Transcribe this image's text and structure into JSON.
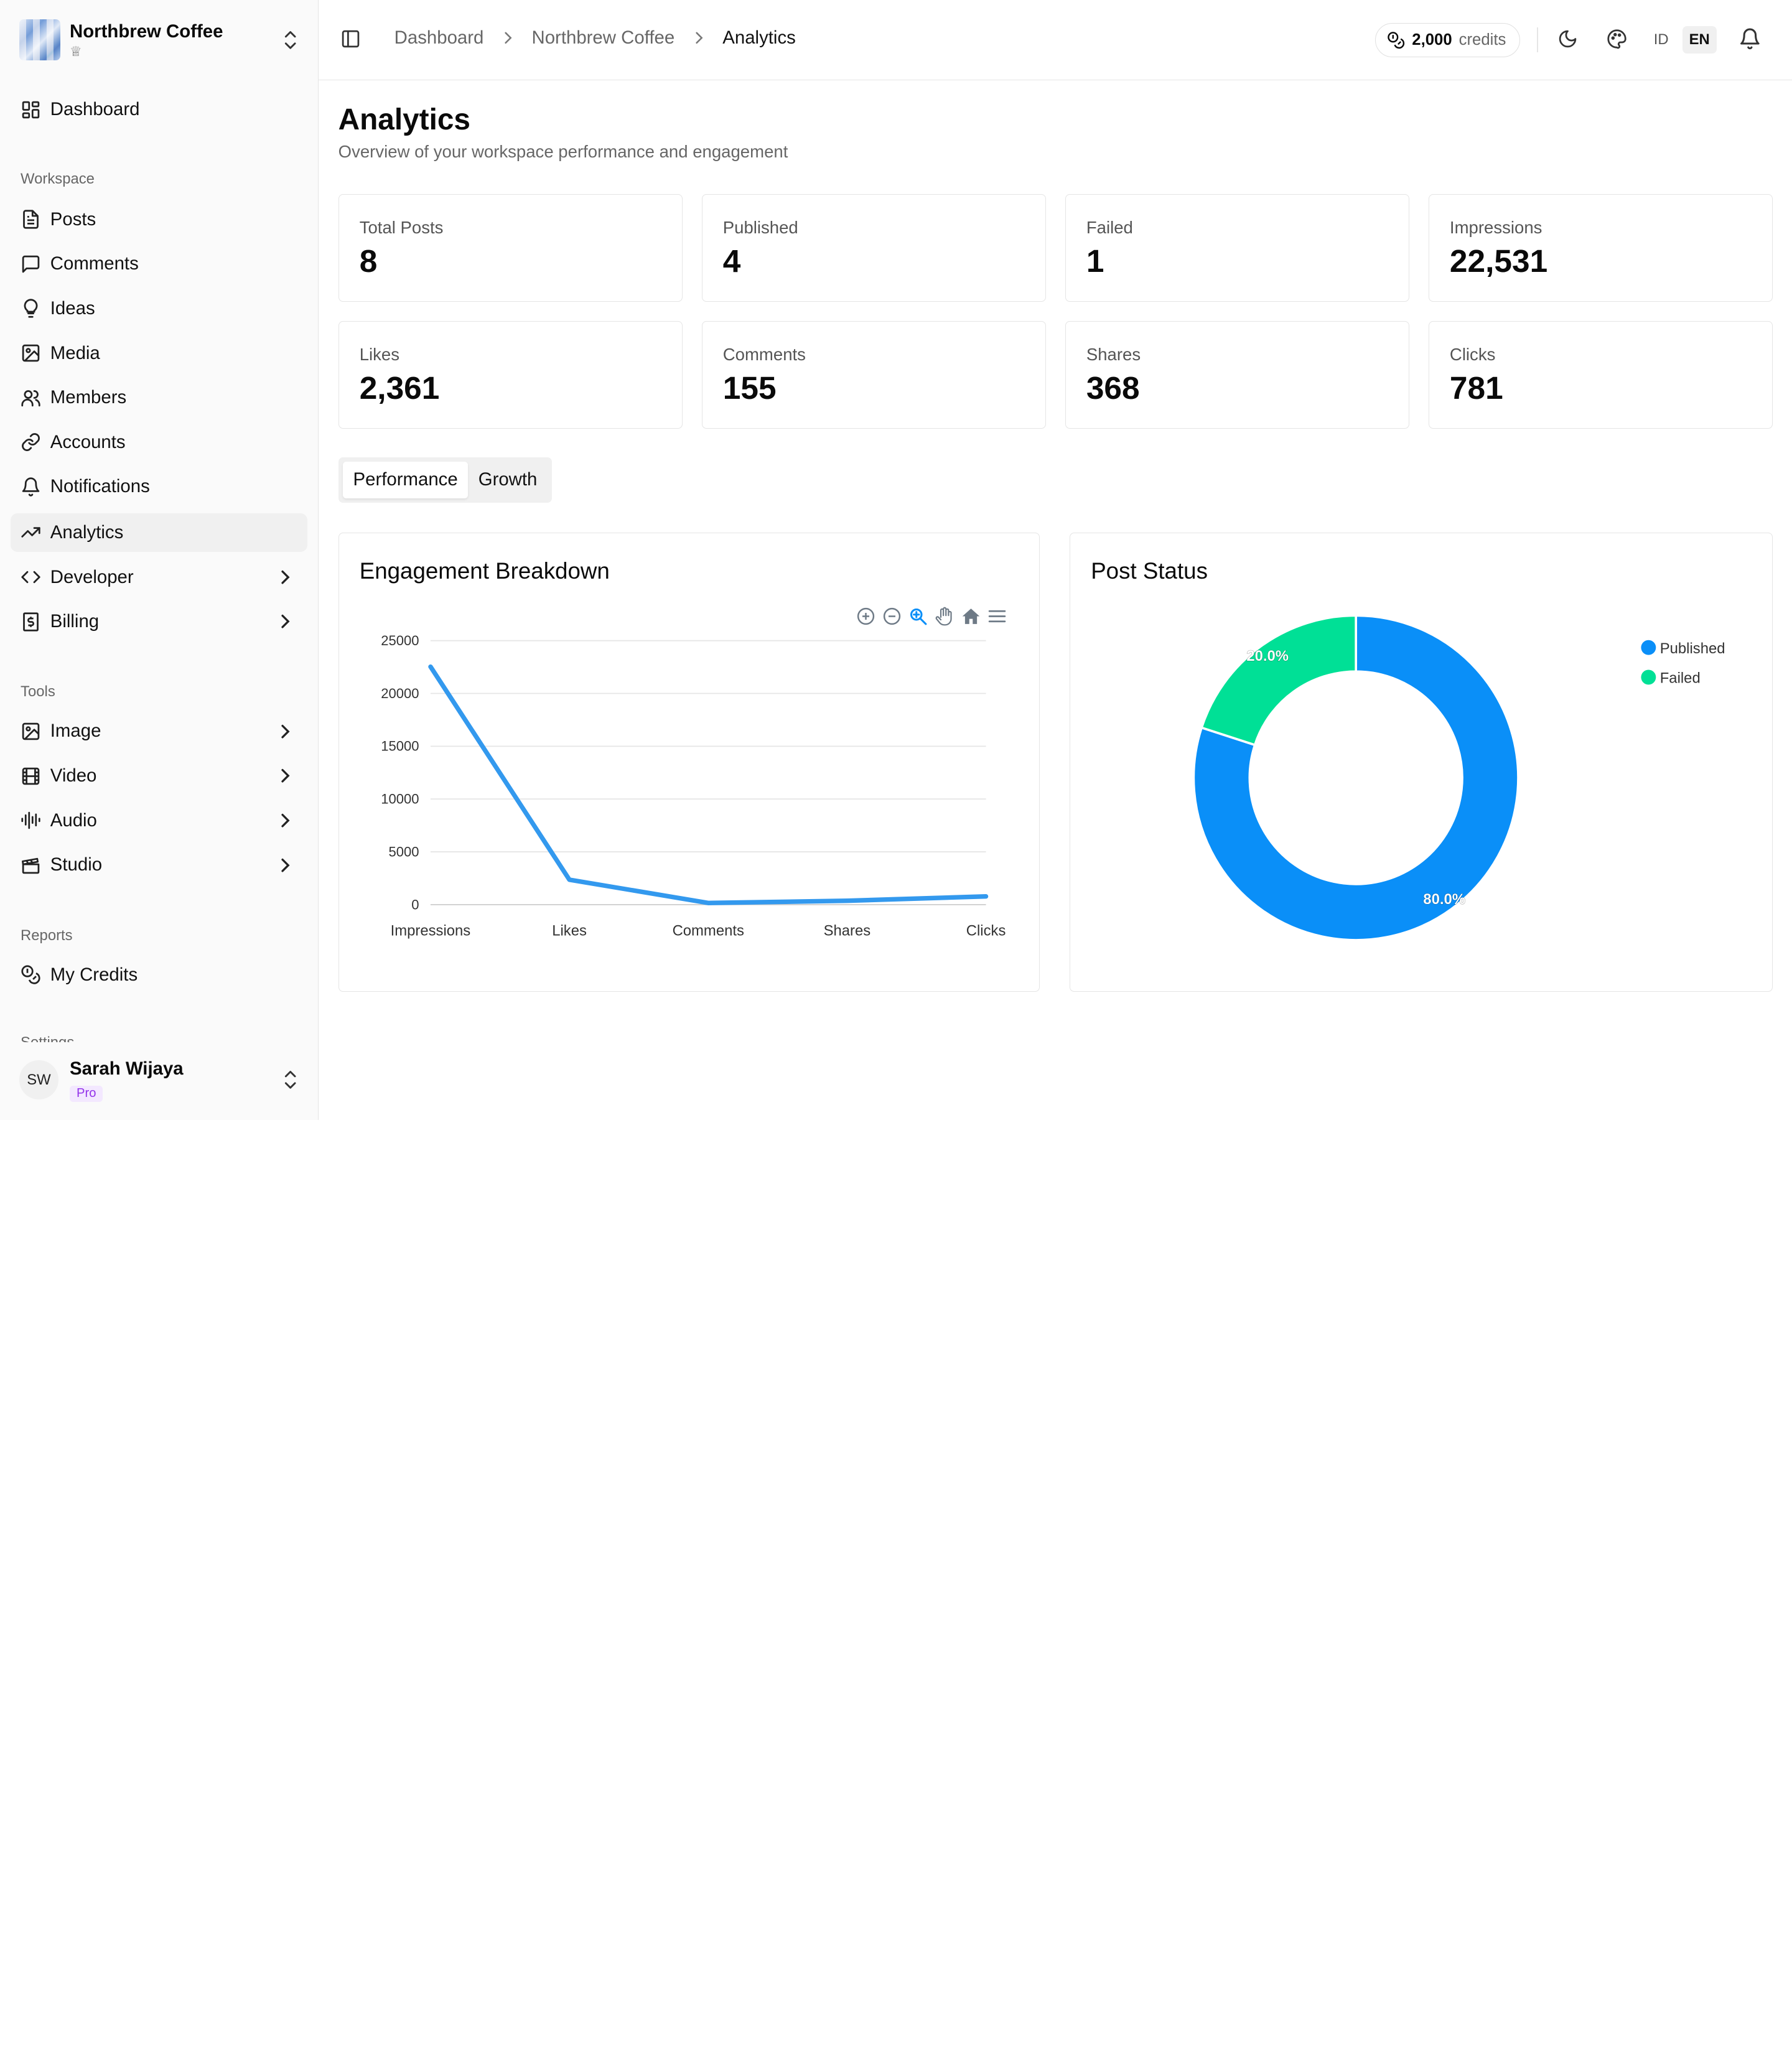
{
  "workspace": {
    "name": "Northbrew Coffee",
    "crown": "♕"
  },
  "sidebar": {
    "top": {
      "label": "Dashboard"
    },
    "groups": {
      "workspace": "Workspace",
      "tools": "Tools",
      "reports": "Reports",
      "partial": "Settings"
    },
    "items": {
      "posts": "Posts",
      "comments": "Comments",
      "ideas": "Ideas",
      "media": "Media",
      "members": "Members",
      "accounts": "Accounts",
      "notifications": "Notifications",
      "analytics": "Analytics",
      "developer": "Developer",
      "billing": "Billing",
      "image": "Image",
      "video": "Video",
      "audio": "Audio",
      "studio": "Studio",
      "my_credits": "My Credits"
    },
    "active": "analytics"
  },
  "user": {
    "initials": "SW",
    "name": "Sarah Wijaya",
    "plan": "Pro"
  },
  "topbar": {
    "breadcrumb": [
      "Dashboard",
      "Northbrew Coffee",
      "Analytics"
    ],
    "credits_value": "2,000",
    "credits_label": "credits",
    "lang_id": "ID",
    "lang_en": "EN",
    "selected_lang": "EN"
  },
  "page": {
    "title": "Analytics",
    "subtitle": "Overview of your workspace performance and engagement"
  },
  "stats": [
    {
      "label": "Total Posts",
      "value": "8"
    },
    {
      "label": "Published",
      "value": "4"
    },
    {
      "label": "Failed",
      "value": "1"
    },
    {
      "label": "Impressions",
      "value": "22,531"
    },
    {
      "label": "Likes",
      "value": "2,361"
    },
    {
      "label": "Comments",
      "value": "155"
    },
    {
      "label": "Shares",
      "value": "368"
    },
    {
      "label": "Clicks",
      "value": "781"
    }
  ],
  "tabs": {
    "performance": "Performance",
    "growth": "Growth",
    "active": "performance"
  },
  "engagement": {
    "title": "Engagement Breakdown"
  },
  "status": {
    "title": "Post Status"
  },
  "chart_data": [
    {
      "type": "line",
      "title": "Engagement Breakdown",
      "categories": [
        "Impressions",
        "Likes",
        "Comments",
        "Shares",
        "Clicks"
      ],
      "values": [
        22531,
        2361,
        155,
        368,
        781
      ],
      "ylim": [
        0,
        25000
      ],
      "yticks": [
        0,
        5000,
        10000,
        15000,
        20000,
        25000
      ],
      "grid": true,
      "color": "#3399ee"
    },
    {
      "type": "pie",
      "title": "Post Status",
      "donut": true,
      "labels": [
        "Published",
        "Failed"
      ],
      "values": [
        80.0,
        20.0
      ],
      "display_labels": [
        "80.0%",
        "20.0%"
      ],
      "colors": [
        "#0a8ff8",
        "#00e096"
      ],
      "legend": "top-right"
    }
  ]
}
